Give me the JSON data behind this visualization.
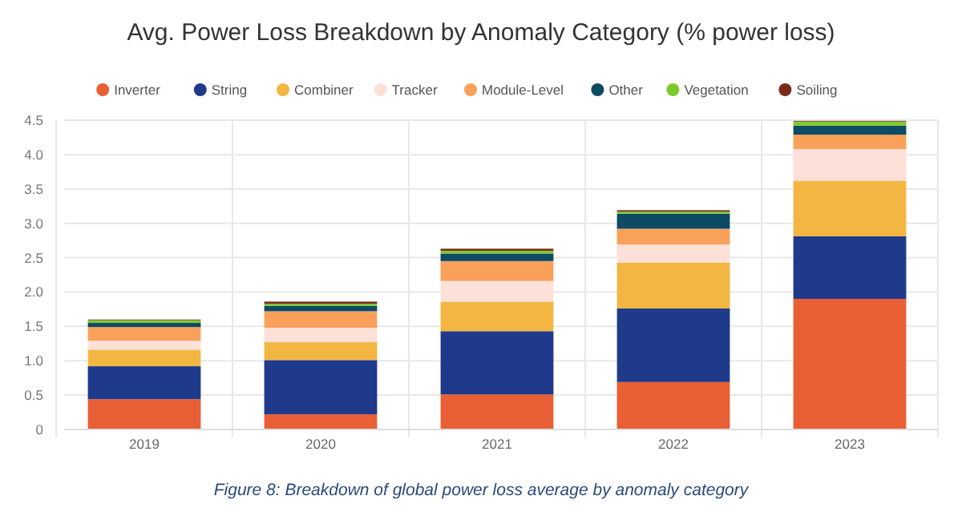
{
  "chart_data": {
    "type": "bar",
    "stacked": true,
    "title": "Avg. Power Loss Breakdown by Anomaly Category (% power loss)",
    "categories": [
      "2019",
      "2020",
      "2021",
      "2022",
      "2023"
    ],
    "series": [
      {
        "name": "Inverter",
        "color": "#e95f35",
        "values": [
          0.44,
          0.22,
          0.51,
          0.69,
          1.9
        ]
      },
      {
        "name": "String",
        "color": "#1f3a8a",
        "values": [
          0.48,
          0.79,
          0.92,
          1.07,
          0.91
        ]
      },
      {
        "name": "Combiner",
        "color": "#f3b642",
        "values": [
          0.24,
          0.26,
          0.43,
          0.67,
          0.81
        ]
      },
      {
        "name": "Tracker",
        "color": "#fde0d8",
        "values": [
          0.13,
          0.21,
          0.3,
          0.26,
          0.46
        ]
      },
      {
        "name": "Module-Level",
        "color": "#f9a15a",
        "values": [
          0.2,
          0.24,
          0.29,
          0.23,
          0.21
        ]
      },
      {
        "name": "Other",
        "color": "#0d4a63",
        "values": [
          0.06,
          0.08,
          0.11,
          0.22,
          0.13
        ]
      },
      {
        "name": "Vegetation",
        "color": "#7ec92a",
        "values": [
          0.04,
          0.03,
          0.04,
          0.03,
          0.06
        ]
      },
      {
        "name": "Soiling",
        "color": "#7a2a1a",
        "values": [
          0.01,
          0.03,
          0.03,
          0.02,
          0.01
        ]
      }
    ],
    "ylim": [
      0,
      4.5
    ],
    "yticks": [
      0,
      0.5,
      {
        "value": 1,
        "label": "1.0"
      },
      1.5,
      {
        "value": 2,
        "label": "2.0"
      },
      2.5,
      {
        "value": 3,
        "label": "3.0"
      },
      3.5,
      {
        "value": 4,
        "label": "4.0"
      },
      4.5
    ],
    "grid": true,
    "legend": "top",
    "annotations": [
      "Figure 8: Breakdown of global power loss average by anomaly category"
    ]
  }
}
